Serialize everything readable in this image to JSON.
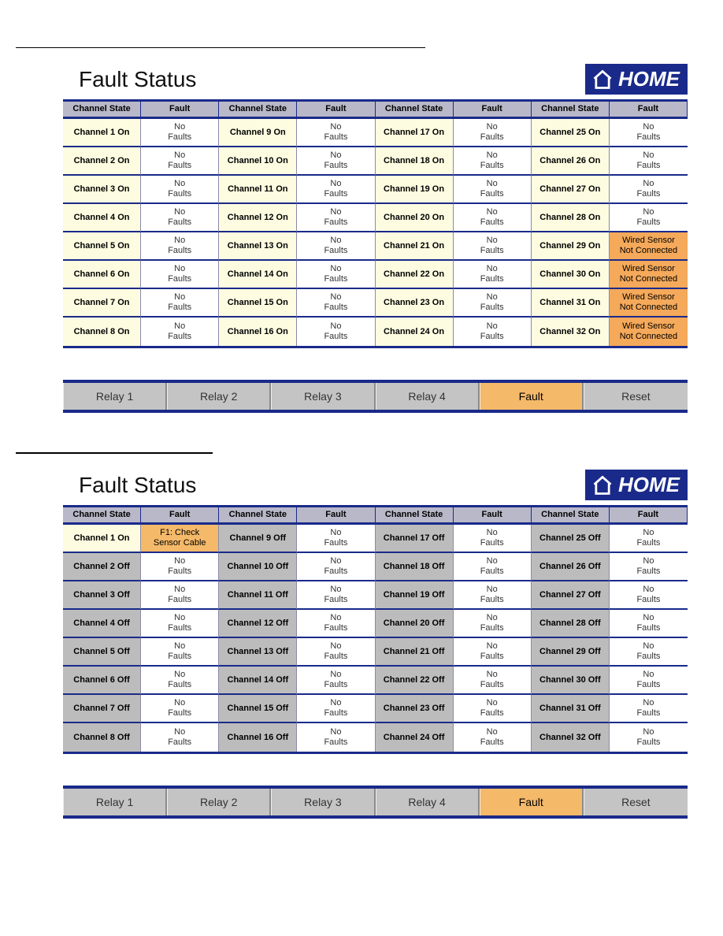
{
  "colors": {
    "header_bg": "#b8b8c8",
    "divider": "#1a2a8a",
    "ch_on_bg": "#fdfce0",
    "ch_off_bg": "#bcbcbc",
    "fault_none_bg": "#ffffff",
    "fault_warn_bg": "#f5a95a",
    "fault_amber_bg": "#f5b96a",
    "btn_bg": "#c4c4c4",
    "btn_active_bg": "#f5b96a",
    "home_bg": "#1a2a8a"
  },
  "home_label": "HOME",
  "panels": [
    {
      "title": "Fault Status",
      "headers": [
        "Channel State",
        "Fault",
        "Channel State",
        "Fault",
        "Channel State",
        "Fault",
        "Channel State",
        "Fault"
      ],
      "channel_groups": [
        [
          {
            "state": "Channel 1 On",
            "on": true,
            "fault": "No\nFaults",
            "fault_type": "none"
          },
          {
            "state": "Channel 2 On",
            "on": true,
            "fault": "No\nFaults",
            "fault_type": "none"
          },
          {
            "state": "Channel 3 On",
            "on": true,
            "fault": "No\nFaults",
            "fault_type": "none"
          },
          {
            "state": "Channel 4 On",
            "on": true,
            "fault": "No\nFaults",
            "fault_type": "none"
          },
          {
            "state": "Channel 5 On",
            "on": true,
            "fault": "No\nFaults",
            "fault_type": "none"
          },
          {
            "state": "Channel 6 On",
            "on": true,
            "fault": "No\nFaults",
            "fault_type": "none"
          },
          {
            "state": "Channel 7 On",
            "on": true,
            "fault": "No\nFaults",
            "fault_type": "none"
          },
          {
            "state": "Channel 8 On",
            "on": true,
            "fault": "No\nFaults",
            "fault_type": "none"
          }
        ],
        [
          {
            "state": "Channel 9 On",
            "on": true,
            "fault": "No\nFaults",
            "fault_type": "none"
          },
          {
            "state": "Channel 10 On",
            "on": true,
            "fault": "No\nFaults",
            "fault_type": "none"
          },
          {
            "state": "Channel 11 On",
            "on": true,
            "fault": "No\nFaults",
            "fault_type": "none"
          },
          {
            "state": "Channel 12 On",
            "on": true,
            "fault": "No\nFaults",
            "fault_type": "none"
          },
          {
            "state": "Channel 13 On",
            "on": true,
            "fault": "No\nFaults",
            "fault_type": "none"
          },
          {
            "state": "Channel 14 On",
            "on": true,
            "fault": "No\nFaults",
            "fault_type": "none"
          },
          {
            "state": "Channel 15 On",
            "on": true,
            "fault": "No\nFaults",
            "fault_type": "none"
          },
          {
            "state": "Channel 16 On",
            "on": true,
            "fault": "No\nFaults",
            "fault_type": "none"
          }
        ],
        [
          {
            "state": "Channel 17 On",
            "on": true,
            "fault": "No\nFaults",
            "fault_type": "none"
          },
          {
            "state": "Channel 18 On",
            "on": true,
            "fault": "No\nFaults",
            "fault_type": "none"
          },
          {
            "state": "Channel 19 On",
            "on": true,
            "fault": "No\nFaults",
            "fault_type": "none"
          },
          {
            "state": "Channel 20 On",
            "on": true,
            "fault": "No\nFaults",
            "fault_type": "none"
          },
          {
            "state": "Channel 21 On",
            "on": true,
            "fault": "No\nFaults",
            "fault_type": "none"
          },
          {
            "state": "Channel 22 On",
            "on": true,
            "fault": "No\nFaults",
            "fault_type": "none"
          },
          {
            "state": "Channel 23 On",
            "on": true,
            "fault": "No\nFaults",
            "fault_type": "none"
          },
          {
            "state": "Channel 24 On",
            "on": true,
            "fault": "No\nFaults",
            "fault_type": "none"
          }
        ],
        [
          {
            "state": "Channel 25 On",
            "on": true,
            "fault": "No\nFaults",
            "fault_type": "none"
          },
          {
            "state": "Channel 26 On",
            "on": true,
            "fault": "No\nFaults",
            "fault_type": "none"
          },
          {
            "state": "Channel 27 On",
            "on": true,
            "fault": "No\nFaults",
            "fault_type": "none"
          },
          {
            "state": "Channel 28 On",
            "on": true,
            "fault": "No\nFaults",
            "fault_type": "none"
          },
          {
            "state": "Channel 29 On",
            "on": true,
            "fault": "Wired Sensor\nNot Connected",
            "fault_type": "warn"
          },
          {
            "state": "Channel 30 On",
            "on": true,
            "fault": "Wired Sensor\nNot Connected",
            "fault_type": "warn"
          },
          {
            "state": "Channel 31 On",
            "on": true,
            "fault": "Wired Sensor\nNot Connected",
            "fault_type": "warn"
          },
          {
            "state": "Channel 32 On",
            "on": true,
            "fault": "Wired Sensor\nNot Connected",
            "fault_type": "warn"
          }
        ]
      ],
      "buttons": [
        {
          "label": "Relay 1",
          "active": false
        },
        {
          "label": "Relay 2",
          "active": false
        },
        {
          "label": "Relay 3",
          "active": false
        },
        {
          "label": "Relay 4",
          "active": false
        },
        {
          "label": "Fault",
          "active": true
        },
        {
          "label": "Reset",
          "active": false
        }
      ]
    },
    {
      "title": "Fault Status",
      "headers": [
        "Channel State",
        "Fault",
        "Channel State",
        "Fault",
        "Channel State",
        "Fault",
        "Channel State",
        "Fault"
      ],
      "channel_groups": [
        [
          {
            "state": "Channel 1 On",
            "on": true,
            "fault": "F1: Check\nSensor Cable",
            "fault_type": "amber"
          },
          {
            "state": "Channel 2 Off",
            "on": false,
            "fault": "No\nFaults",
            "fault_type": "none"
          },
          {
            "state": "Channel 3 Off",
            "on": false,
            "fault": "No\nFaults",
            "fault_type": "none"
          },
          {
            "state": "Channel 4 Off",
            "on": false,
            "fault": "No\nFaults",
            "fault_type": "none"
          },
          {
            "state": "Channel 5 Off",
            "on": false,
            "fault": "No\nFaults",
            "fault_type": "none"
          },
          {
            "state": "Channel 6 Off",
            "on": false,
            "fault": "No\nFaults",
            "fault_type": "none"
          },
          {
            "state": "Channel 7 Off",
            "on": false,
            "fault": "No\nFaults",
            "fault_type": "none"
          },
          {
            "state": "Channel 8 Off",
            "on": false,
            "fault": "No\nFaults",
            "fault_type": "none"
          }
        ],
        [
          {
            "state": "Channel 9 Off",
            "on": false,
            "fault": "No\nFaults",
            "fault_type": "none"
          },
          {
            "state": "Channel 10 Off",
            "on": false,
            "fault": "No\nFaults",
            "fault_type": "none"
          },
          {
            "state": "Channel 11 Off",
            "on": false,
            "fault": "No\nFaults",
            "fault_type": "none"
          },
          {
            "state": "Channel 12 Off",
            "on": false,
            "fault": "No\nFaults",
            "fault_type": "none"
          },
          {
            "state": "Channel 13 Off",
            "on": false,
            "fault": "No\nFaults",
            "fault_type": "none"
          },
          {
            "state": "Channel 14 Off",
            "on": false,
            "fault": "No\nFaults",
            "fault_type": "none"
          },
          {
            "state": "Channel 15 Off",
            "on": false,
            "fault": "No\nFaults",
            "fault_type": "none"
          },
          {
            "state": "Channel 16 Off",
            "on": false,
            "fault": "No\nFaults",
            "fault_type": "none"
          }
        ],
        [
          {
            "state": "Channel 17 Off",
            "on": false,
            "fault": "No\nFaults",
            "fault_type": "none"
          },
          {
            "state": "Channel 18 Off",
            "on": false,
            "fault": "No\nFaults",
            "fault_type": "none"
          },
          {
            "state": "Channel 19 Off",
            "on": false,
            "fault": "No\nFaults",
            "fault_type": "none"
          },
          {
            "state": "Channel 20 Off",
            "on": false,
            "fault": "No\nFaults",
            "fault_type": "none"
          },
          {
            "state": "Channel 21 Off",
            "on": false,
            "fault": "No\nFaults",
            "fault_type": "none"
          },
          {
            "state": "Channel 22 Off",
            "on": false,
            "fault": "No\nFaults",
            "fault_type": "none"
          },
          {
            "state": "Channel 23 Off",
            "on": false,
            "fault": "No\nFaults",
            "fault_type": "none"
          },
          {
            "state": "Channel 24 Off",
            "on": false,
            "fault": "No\nFaults",
            "fault_type": "none"
          }
        ],
        [
          {
            "state": "Channel 25 Off",
            "on": false,
            "fault": "No\nFaults",
            "fault_type": "none"
          },
          {
            "state": "Channel 26 Off",
            "on": false,
            "fault": "No\nFaults",
            "fault_type": "none"
          },
          {
            "state": "Channel 27 Off",
            "on": false,
            "fault": "No\nFaults",
            "fault_type": "none"
          },
          {
            "state": "Channel 28 Off",
            "on": false,
            "fault": "No\nFaults",
            "fault_type": "none"
          },
          {
            "state": "Channel 29 Off",
            "on": false,
            "fault": "No\nFaults",
            "fault_type": "none"
          },
          {
            "state": "Channel 30 Off",
            "on": false,
            "fault": "No\nFaults",
            "fault_type": "none"
          },
          {
            "state": "Channel 31 Off",
            "on": false,
            "fault": "No\nFaults",
            "fault_type": "none"
          },
          {
            "state": "Channel 32 Off",
            "on": false,
            "fault": "No\nFaults",
            "fault_type": "none"
          }
        ]
      ],
      "buttons": [
        {
          "label": "Relay 1",
          "active": false
        },
        {
          "label": "Relay 2",
          "active": false
        },
        {
          "label": "Relay 3",
          "active": false
        },
        {
          "label": "Relay 4",
          "active": false
        },
        {
          "label": "Fault",
          "active": true
        },
        {
          "label": "Reset",
          "active": false
        }
      ]
    }
  ]
}
